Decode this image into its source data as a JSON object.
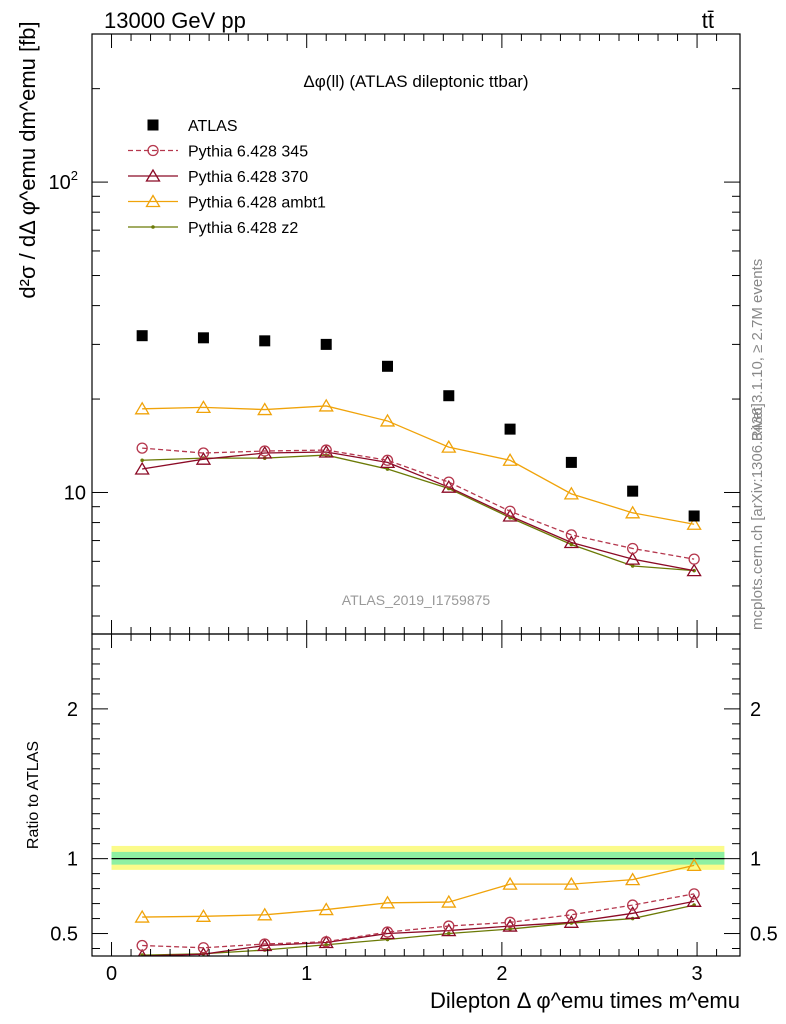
{
  "header": {
    "left_label": "13000 GeV pp",
    "right_label": "tt̄",
    "side_label_top": "Rivet 3.1.10, ≥ 2.7M events",
    "side_label_bottom": "mcplots.cern.ch [arXiv:1306.3436]"
  },
  "chart_data": [
    {
      "type": "scatter",
      "title": "Δφ(ll) (ATLAS dileptonic ttbar)",
      "watermark": "ATLAS_2019_I1759875",
      "ylabel": "d²σ / dΔ φ^emu dm^emu [fb]",
      "yscale": "log",
      "ylim": [
        3.5,
        300
      ],
      "xlim": [
        -0.1,
        3.22
      ],
      "y_tick_labels": [
        "10",
        "10²"
      ],
      "legend_position": "top-left",
      "x": [
        0.157,
        0.471,
        0.785,
        1.1,
        1.414,
        1.728,
        2.042,
        2.356,
        2.67,
        2.985
      ],
      "series": [
        {
          "name": "ATLAS",
          "color": "#000000",
          "marker": "square",
          "line": "none",
          "values": [
            32.0,
            31.5,
            30.8,
            30.0,
            25.5,
            20.5,
            16.0,
            12.5,
            10.1,
            8.4
          ]
        },
        {
          "name": "Pythia 6.428 345",
          "color": "#b5374d",
          "marker": "circle",
          "line": "dashed",
          "values": [
            13.9,
            13.4,
            13.6,
            13.7,
            12.7,
            10.8,
            8.7,
            7.3,
            6.6,
            6.1
          ]
        },
        {
          "name": "Pythia 6.428 370",
          "color": "#8b0a26",
          "marker": "triangle",
          "line": "solid",
          "values": [
            11.9,
            12.8,
            13.4,
            13.5,
            12.5,
            10.4,
            8.4,
            6.9,
            6.1,
            5.6
          ]
        },
        {
          "name": "Pythia 6.428 ambt1",
          "color": "#f0a30a",
          "marker": "triangle",
          "line": "solid",
          "values": [
            18.6,
            18.8,
            18.5,
            19.0,
            17.0,
            14.0,
            12.7,
            9.9,
            8.6,
            7.9
          ]
        },
        {
          "name": "Pythia 6.428 z2",
          "color": "#6b7a06",
          "marker": "dot",
          "line": "solid",
          "values": [
            12.7,
            12.9,
            12.9,
            13.2,
            11.9,
            10.3,
            8.3,
            6.8,
            5.8,
            5.6
          ]
        }
      ]
    },
    {
      "type": "scatter",
      "xlabel": "Dilepton Δ φ^emu times m^emu",
      "ylabel": "Ratio to ATLAS",
      "ylim": [
        0.35,
        2.5
      ],
      "xlim": [
        -0.1,
        3.22
      ],
      "x_tick_labels": [
        "0",
        "1",
        "2",
        "3"
      ],
      "y_tick_labels": [
        "0.5",
        "1",
        "2"
      ],
      "band_inner": [
        0.96,
        1.045
      ],
      "band_outer": [
        0.925,
        1.085
      ],
      "x": [
        0.157,
        0.471,
        0.785,
        1.1,
        1.414,
        1.728,
        2.042,
        2.356,
        2.67,
        2.985
      ],
      "series": [
        {
          "name": "Pythia 6.428 345",
          "color": "#b5374d",
          "marker": "circle",
          "line": "dashed",
          "values": [
            0.42,
            0.405,
            0.43,
            0.445,
            0.51,
            0.55,
            0.575,
            0.625,
            0.69,
            0.765
          ]
        },
        {
          "name": "Pythia 6.428 370",
          "color": "#8b0a26",
          "marker": "triangle",
          "line": "solid",
          "values": [
            0.35,
            0.362,
            0.42,
            0.44,
            0.5,
            0.52,
            0.55,
            0.575,
            0.635,
            0.715
          ]
        },
        {
          "name": "Pythia 6.428 ambt1",
          "color": "#f0a30a",
          "marker": "triangle",
          "line": "solid",
          "values": [
            0.61,
            0.615,
            0.625,
            0.66,
            0.705,
            0.71,
            0.83,
            0.83,
            0.86,
            0.955
          ]
        },
        {
          "name": "Pythia 6.428 z2",
          "color": "#6b7a06",
          "marker": "dot",
          "line": "solid",
          "values": [
            0.356,
            0.365,
            0.39,
            0.425,
            0.46,
            0.5,
            0.53,
            0.57,
            0.6,
            0.69
          ]
        }
      ]
    }
  ]
}
